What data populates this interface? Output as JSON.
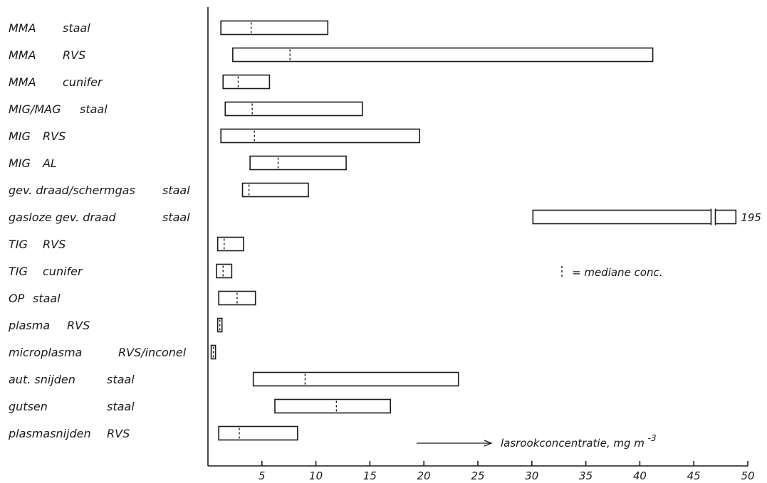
{
  "chart_data": {
    "type": "bar",
    "orientation": "horizontal",
    "style": "range bars with median markers",
    "categories": [
      [
        "MMA",
        "staal"
      ],
      [
        "MMA",
        "RVS"
      ],
      [
        "MMA",
        "cunifer"
      ],
      [
        "MIG/MAG",
        "staal"
      ],
      [
        "MIG",
        "RVS"
      ],
      [
        "MIG",
        "AL"
      ],
      [
        "gev. draad/schermgas",
        "staal"
      ],
      [
        "gasloze gev. draad",
        "staal"
      ],
      [
        "TIG",
        "RVS"
      ],
      [
        "TIG",
        "cunifer"
      ],
      [
        "OP",
        "staal"
      ],
      [
        "plasma",
        "RVS"
      ],
      [
        "microplasma",
        "RVS/inconel"
      ],
      [
        "aut. snijden",
        "staal"
      ],
      [
        "gutsen",
        "staal"
      ],
      [
        "plasmasnijden",
        "RVS"
      ]
    ],
    "ranges": [
      {
        "min": 1.2,
        "max": 11.1,
        "median": 4.0
      },
      {
        "min": 2.3,
        "max": 41.2,
        "median": 7.6
      },
      {
        "min": 1.4,
        "max": 5.7,
        "median": 2.8
      },
      {
        "min": 1.6,
        "max": 14.3,
        "median": 4.1
      },
      {
        "min": 1.2,
        "max": 19.6,
        "median": 4.3
      },
      {
        "min": 3.9,
        "max": 12.8,
        "median": 6.5
      },
      {
        "min": 3.2,
        "max": 9.3,
        "median": 3.8
      },
      {
        "min": 30.1,
        "max": 195,
        "median": null
      },
      {
        "min": 0.9,
        "max": 3.3,
        "median": 1.5
      },
      {
        "min": 0.8,
        "max": 2.2,
        "median": 1.4
      },
      {
        "min": 1.0,
        "max": 4.4,
        "median": 2.7
      },
      {
        "min": 0.9,
        "max": 1.3,
        "median": 1.1
      },
      {
        "min": 0.3,
        "max": 0.7,
        "median": 0.5
      },
      {
        "min": 4.2,
        "max": 23.2,
        "median": 9.0
      },
      {
        "min": 6.2,
        "max": 16.9,
        "median": 11.9
      },
      {
        "min": 1.0,
        "max": 8.3,
        "median": 2.9
      }
    ],
    "value_labels": {
      "7": "195"
    },
    "x_ticks": [
      "5",
      "10",
      "15",
      "20",
      "25",
      "30",
      "35",
      "40",
      "45",
      "50"
    ],
    "xlim": [
      0,
      50
    ],
    "axis_break_at": 46.8,
    "xlabel": "lasrookconcentratie, mg m",
    "xlabel_superscript": "-3",
    "legend_text": "= mediane conc.",
    "grid": false
  }
}
